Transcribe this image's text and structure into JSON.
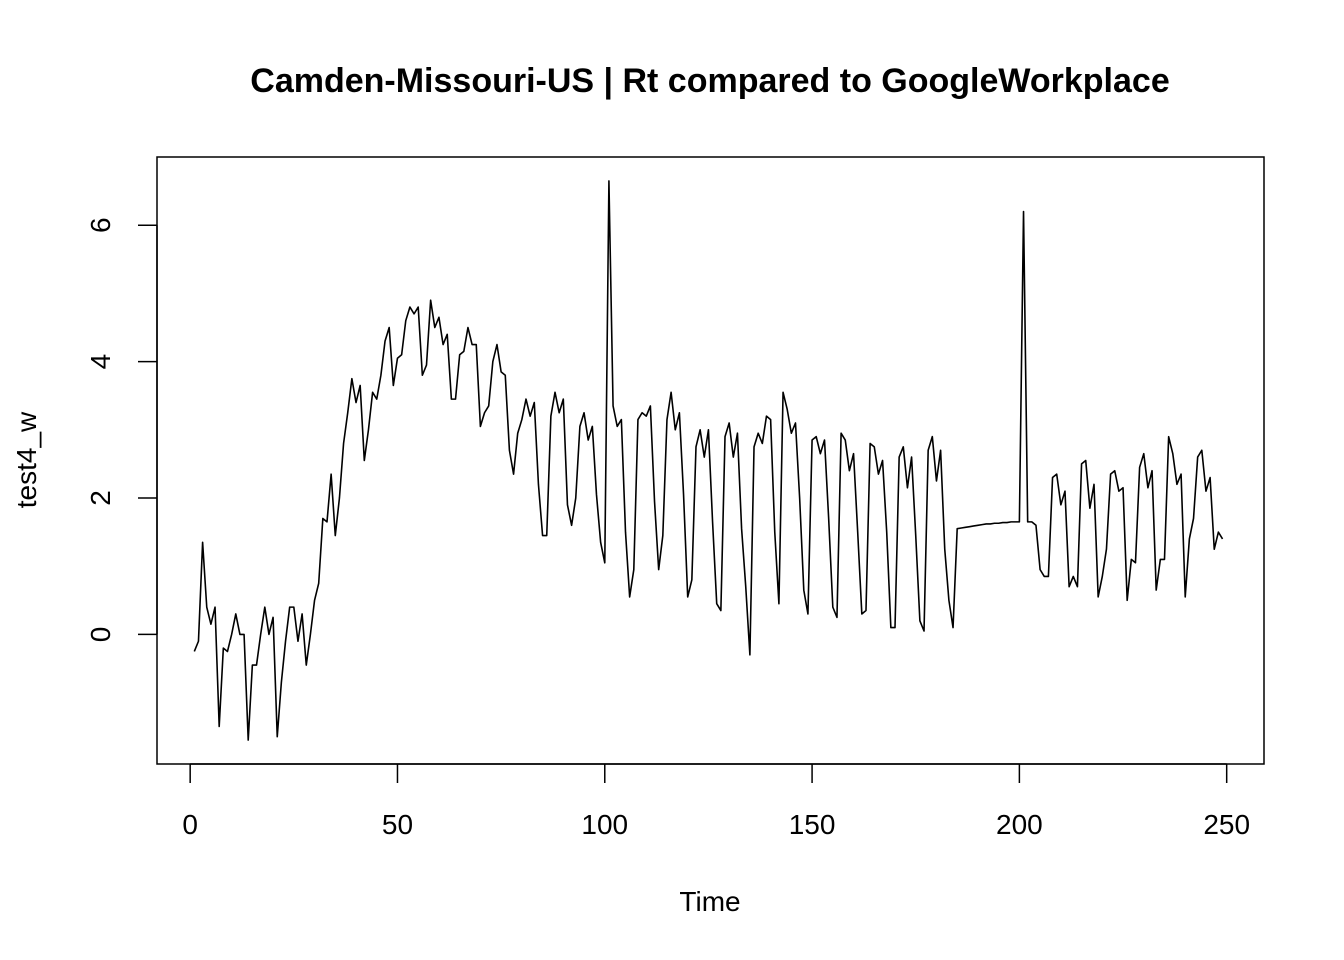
{
  "chart_data": {
    "type": "line",
    "title": "Camden-Missouri-US | Rt compared to GoogleWorkplace",
    "xlabel": "Time",
    "ylabel": "test4_w",
    "xlim": [
      -8,
      259
    ],
    "ylim": [
      -1.9,
      7.0
    ],
    "x_ticks": [
      0,
      50,
      100,
      150,
      200,
      250
    ],
    "y_ticks": [
      0,
      2,
      4,
      6
    ],
    "x_tick_labels": [
      "0",
      "50",
      "100",
      "150",
      "200",
      "250"
    ],
    "y_tick_labels": [
      "0",
      "2",
      "4",
      "6"
    ],
    "series": [
      {
        "name": "test4_w",
        "color": "#000000",
        "x_start": 1,
        "values": [
          -0.25,
          -0.1,
          1.35,
          0.4,
          0.15,
          0.4,
          -1.35,
          -0.2,
          -0.25,
          0.0,
          0.3,
          0.0,
          0.0,
          -1.55,
          -0.45,
          -0.45,
          0.0,
          0.4,
          0.0,
          0.25,
          -1.5,
          -0.7,
          -0.1,
          0.4,
          0.4,
          -0.1,
          0.3,
          -0.45,
          0.0,
          0.5,
          0.75,
          1.7,
          1.65,
          2.35,
          1.45,
          2.0,
          2.8,
          3.25,
          3.75,
          3.4,
          3.65,
          2.55,
          3.0,
          3.55,
          3.45,
          3.8,
          4.3,
          4.5,
          3.65,
          4.05,
          4.1,
          4.6,
          4.8,
          4.7,
          4.8,
          3.8,
          3.95,
          4.9,
          4.5,
          4.65,
          4.25,
          4.4,
          3.45,
          3.45,
          4.1,
          4.15,
          4.5,
          4.25,
          4.25,
          3.05,
          3.25,
          3.35,
          4.0,
          4.25,
          3.85,
          3.8,
          2.7,
          2.35,
          2.95,
          3.15,
          3.45,
          3.2,
          3.4,
          2.2,
          1.45,
          1.45,
          3.2,
          3.55,
          3.25,
          3.45,
          1.9,
          1.6,
          2.0,
          3.05,
          3.25,
          2.85,
          3.05,
          2.05,
          1.35,
          1.05,
          6.65,
          3.35,
          3.05,
          3.15,
          1.5,
          0.55,
          0.95,
          3.15,
          3.25,
          3.2,
          3.35,
          1.95,
          0.95,
          1.45,
          3.15,
          3.55,
          3.0,
          3.25,
          2.05,
          0.55,
          0.8,
          2.75,
          3.0,
          2.6,
          3.0,
          1.65,
          0.45,
          0.35,
          2.9,
          3.1,
          2.6,
          2.95,
          1.55,
          0.7,
          -0.3,
          2.75,
          2.95,
          2.8,
          3.2,
          3.15,
          1.5,
          0.45,
          3.55,
          3.3,
          2.95,
          3.1,
          2.0,
          0.65,
          0.3,
          2.85,
          2.9,
          2.65,
          2.85,
          1.7,
          0.4,
          0.25,
          2.95,
          2.85,
          2.4,
          2.65,
          1.5,
          0.3,
          0.35,
          2.8,
          2.75,
          2.35,
          2.55,
          1.5,
          0.1,
          0.1,
          2.6,
          2.75,
          2.15,
          2.6,
          1.45,
          0.2,
          0.05,
          2.7,
          2.9,
          2.25,
          2.7,
          1.25,
          0.5,
          0.1,
          1.55,
          1.56,
          1.57,
          1.58,
          1.59,
          1.6,
          1.61,
          1.62,
          1.62,
          1.63,
          1.63,
          1.64,
          1.64,
          1.65,
          1.65,
          1.65,
          6.2,
          1.65,
          1.65,
          1.6,
          0.95,
          0.85,
          0.85,
          2.3,
          2.35,
          1.9,
          2.1,
          0.7,
          0.85,
          0.7,
          2.5,
          2.55,
          1.85,
          2.2,
          0.55,
          0.85,
          1.25,
          2.35,
          2.4,
          2.1,
          2.15,
          0.5,
          1.1,
          1.05,
          2.45,
          2.65,
          2.15,
          2.4,
          0.65,
          1.1,
          1.1,
          2.9,
          2.65,
          2.2,
          2.35,
          0.55,
          1.4,
          1.7,
          2.6,
          2.7,
          2.1,
          2.3,
          1.25,
          1.5,
          1.4
        ]
      }
    ]
  }
}
